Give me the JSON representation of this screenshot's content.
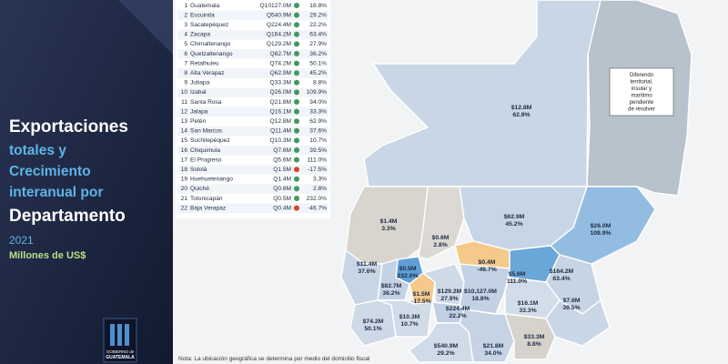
{
  "header": {
    "title": [
      "Exportaciones",
      "totales y",
      "Crecimiento",
      "interanual por",
      "Departamento"
    ],
    "year": "2021",
    "unit": "Millones de US$"
  },
  "logo": {
    "line1": "GOBIERNO de",
    "line2": "GUATEMALA"
  },
  "table": {
    "rows": [
      [
        "1",
        "Guatemala",
        "Q10127.0M",
        "18.8%"
      ],
      [
        "2",
        "Escuintla",
        "Q540.9M",
        "29.2%"
      ],
      [
        "3",
        "Sacatepéquez",
        "Q224.4M",
        "22.2%"
      ],
      [
        "4",
        "Zacapa",
        "Q164.2M",
        "63.4%"
      ],
      [
        "5",
        "Chimaltenango",
        "Q129.2M",
        "27.9%"
      ],
      [
        "6",
        "Quetzaltenango",
        "Q82.7M",
        "36.2%"
      ],
      [
        "7",
        "Retalhuleu",
        "Q74.2M",
        "50.1%"
      ],
      [
        "8",
        "Alta Verapaz",
        "Q62.9M",
        "45.2%"
      ],
      [
        "9",
        "Jutiapa",
        "Q33.3M",
        "8.8%"
      ],
      [
        "10",
        "Izabal",
        "Q26.0M",
        "109.9%"
      ],
      [
        "11",
        "Santa Rosa",
        "Q21.8M",
        "34.0%"
      ],
      [
        "12",
        "Jalapa",
        "Q16.1M",
        "33.3%"
      ],
      [
        "13",
        "Petén",
        "Q12.8M",
        "62.9%"
      ],
      [
        "14",
        "San Marcos",
        "Q11.4M",
        "37.6%"
      ],
      [
        "15",
        "Suchitepéquez",
        "Q10.3M",
        "10.7%"
      ],
      [
        "16",
        "Chiquimula",
        "Q7.6M",
        "39.5%"
      ],
      [
        "17",
        "El Progreso",
        "Q5.6M",
        "111.0%"
      ],
      [
        "18",
        "Sololá",
        "Q1.5M",
        "-17.5%"
      ],
      [
        "19",
        "Huehuetenango",
        "Q1.4M",
        "3.3%"
      ],
      [
        "20",
        "Quiché",
        "Q0.6M",
        "2.8%"
      ],
      [
        "21",
        "Totonicapán",
        "Q0.5M",
        "232.0%"
      ],
      [
        "22",
        "Baja Verapaz",
        "Q0.4M",
        "-46.7%"
      ]
    ]
  },
  "map": {
    "labels": [
      [
        "$12.8M",
        "62.9%"
      ],
      [
        "$1.4M",
        "3.3%"
      ],
      [
        "$0.6M",
        "2.8%"
      ],
      [
        "$62.9M",
        "45.2%"
      ],
      [
        "$26.0M",
        "109.9%"
      ],
      [
        "$11.4M",
        "37.6%"
      ],
      [
        "$0.5M",
        "232.0%"
      ],
      [
        "$0.4M",
        "-46.7%"
      ],
      [
        "$5.6M",
        "111.0%"
      ],
      [
        "$164.2M",
        "63.4%"
      ],
      [
        "$82.7M",
        "36.2%"
      ],
      [
        "$1.5M",
        "-17.5%"
      ],
      [
        "$129.2M",
        "27.9%"
      ],
      [
        "$10,127.0M",
        "18.8%"
      ],
      [
        "$16.1M",
        "33.3%"
      ],
      [
        "$7.6M",
        "39.5%"
      ],
      [
        "$74.2M",
        "50.1%"
      ],
      [
        "$10.3M",
        "10.7%"
      ],
      [
        "$224.4M",
        "22.2%"
      ],
      [
        "$540.9M",
        "29.2%"
      ],
      [
        "$21.8M",
        "34.0%"
      ],
      [
        "$33.3M",
        "8.8%"
      ]
    ],
    "note": [
      "Diferendo",
      "territorial,",
      "insular y",
      "marítimo",
      "pendiente",
      "de resolver"
    ]
  },
  "footnote": "Nota: La ubicación geográfica se determina por medio del domicilio fiscal"
}
